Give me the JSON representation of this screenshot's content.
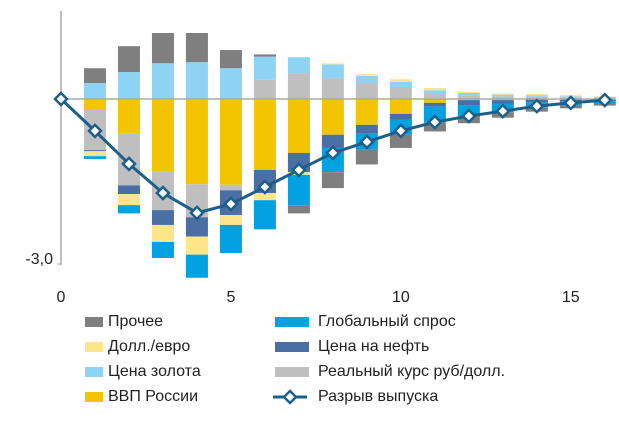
{
  "chart_data": {
    "type": "bar",
    "x": [
      0,
      1,
      2,
      3,
      4,
      5,
      6,
      7,
      8,
      9,
      10,
      11,
      12,
      13,
      14,
      15,
      16
    ],
    "xlim": [
      0,
      16.3
    ],
    "xticks": [
      0,
      5,
      10,
      15
    ],
    "ylim": [
      -3.25,
      1.6
    ],
    "yticks": [
      {
        "value": -3,
        "label": "-3,0"
      }
    ],
    "stacked": true,
    "series": [
      {
        "name": "ВВП России",
        "color": "#f2c500",
        "values": [
          null,
          -0.2,
          -0.62,
          -1.31,
          -1.55,
          -1.56,
          -1.29,
          -0.98,
          -0.65,
          -0.47,
          -0.27,
          -0.07,
          -0.02,
          -0.02,
          -0.01,
          -0.01,
          -0.01
        ]
      },
      {
        "name": "Реальный курс руб/долл.",
        "color": "#bfbfbf",
        "values": [
          null,
          -0.73,
          -0.95,
          -0.71,
          -0.6,
          -0.1,
          0.35,
          0.47,
          0.38,
          0.29,
          0.22,
          0.11,
          0.07,
          0.05,
          0.04,
          0.03,
          0.02
        ]
      },
      {
        "name": "Цена золота",
        "color": "#8fd3f4",
        "values": [
          null,
          0.29,
          0.49,
          0.65,
          0.67,
          0.56,
          0.42,
          0.29,
          0.25,
          0.13,
          0.09,
          0.05,
          0.04,
          0.03,
          0.03,
          0.02,
          0.02
        ]
      },
      {
        "name": "Цена на нефть",
        "color": "#4a6fa5",
        "values": [
          null,
          -0.02,
          -0.16,
          -0.27,
          -0.35,
          -0.45,
          -0.42,
          -0.35,
          -0.24,
          -0.16,
          -0.11,
          -0.07,
          -0.09,
          -0.07,
          -0.05,
          -0.04,
          -0.03
        ]
      },
      {
        "name": "Долл./евро",
        "color": "#fde58a",
        "values": [
          null,
          -0.09,
          -0.2,
          -0.31,
          -0.33,
          -0.18,
          -0.13,
          -0.05,
          0.02,
          0.03,
          0.05,
          0.04,
          0.02,
          0.02,
          0.02,
          0.02,
          0.01
        ]
      },
      {
        "name": "Глобальный спрос",
        "color": "#00a3e0",
        "values": [
          null,
          -0.05,
          -0.15,
          -0.29,
          -0.42,
          -0.51,
          -0.53,
          -0.55,
          -0.44,
          -0.29,
          -0.27,
          -0.29,
          -0.2,
          -0.15,
          -0.1,
          -0.07,
          -0.05
        ]
      },
      {
        "name": "Прочее",
        "color": "#7f7f7f",
        "values": [
          null,
          0.27,
          0.47,
          0.55,
          0.53,
          0.33,
          0.04,
          -0.15,
          -0.29,
          -0.27,
          -0.24,
          -0.16,
          -0.13,
          -0.1,
          -0.07,
          -0.05,
          -0.03
        ]
      },
      {
        "name": "Разрыв выпуска",
        "color": "#1d5f8a",
        "type": "line",
        "values": [
          0,
          -0.58,
          -1.18,
          -1.71,
          -2.07,
          -1.91,
          -1.6,
          -1.29,
          -0.98,
          -0.78,
          -0.58,
          -0.42,
          -0.31,
          -0.22,
          -0.13,
          -0.07,
          -0.02
        ]
      }
    ]
  }
}
